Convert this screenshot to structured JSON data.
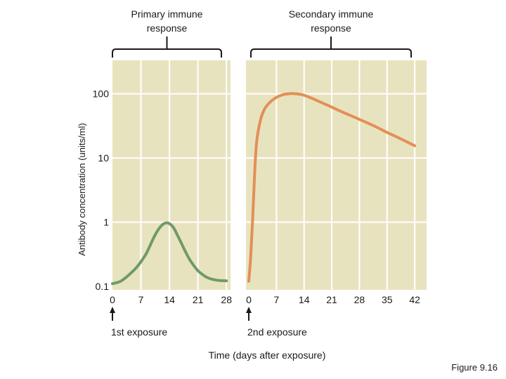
{
  "chart_data": {
    "type": "line",
    "title": "",
    "ylabel": "Antibody concentration (units/ml)",
    "xlabel": "Time (days after exposure)",
    "yscale": "log",
    "ylim": [
      0.1,
      300
    ],
    "yticks": [
      0.1,
      1,
      10,
      100
    ],
    "ytick_labels": [
      "0.1",
      "1",
      "10",
      "100"
    ],
    "figure_label": "Figure 9.16",
    "colors": {
      "plot_bg": "#e8e3bf",
      "grid": "#ffffff",
      "primary": "#6f9a6a",
      "secondary": "#e38f57",
      "bracket": "#1a1a1a"
    },
    "panels": [
      {
        "name": "primary",
        "bracket_label": [
          "Primary immune",
          "response"
        ],
        "xlim": [
          0,
          29
        ],
        "xticks": [
          0,
          7,
          14,
          21,
          28
        ],
        "exposure_label": "1st exposure",
        "series": {
          "name": "Primary response",
          "x": [
            0,
            2,
            4,
            6,
            8,
            9,
            10,
            11,
            12,
            13,
            14,
            15,
            16,
            17,
            18,
            19,
            20,
            21,
            22,
            23,
            24,
            25,
            26,
            28
          ],
          "y": [
            0.11,
            0.12,
            0.15,
            0.2,
            0.3,
            0.4,
            0.55,
            0.72,
            0.88,
            0.97,
            0.95,
            0.82,
            0.62,
            0.46,
            0.34,
            0.26,
            0.21,
            0.175,
            0.155,
            0.14,
            0.132,
            0.127,
            0.124,
            0.122
          ]
        }
      },
      {
        "name": "secondary",
        "bracket_label": [
          "Secondary immune",
          "response"
        ],
        "xlim": [
          0,
          45
        ],
        "xticks": [
          0,
          7,
          14,
          21,
          28,
          35,
          42
        ],
        "exposure_label": "2nd exposure",
        "series": {
          "name": "Secondary response",
          "x": [
            0,
            0.5,
            1,
            1.5,
            2,
            3,
            4,
            5,
            6,
            7,
            8,
            9,
            10,
            11,
            12,
            13,
            14,
            16,
            18,
            21,
            24,
            28,
            32,
            35,
            38,
            42
          ],
          "y": [
            0.12,
            0.3,
            1.2,
            6,
            18,
            40,
            58,
            70,
            80,
            88,
            94,
            98,
            100,
            101,
            100,
            98,
            95,
            85,
            75,
            62,
            51,
            40,
            31,
            25,
            20.5,
            15.5
          ]
        }
      }
    ]
  }
}
